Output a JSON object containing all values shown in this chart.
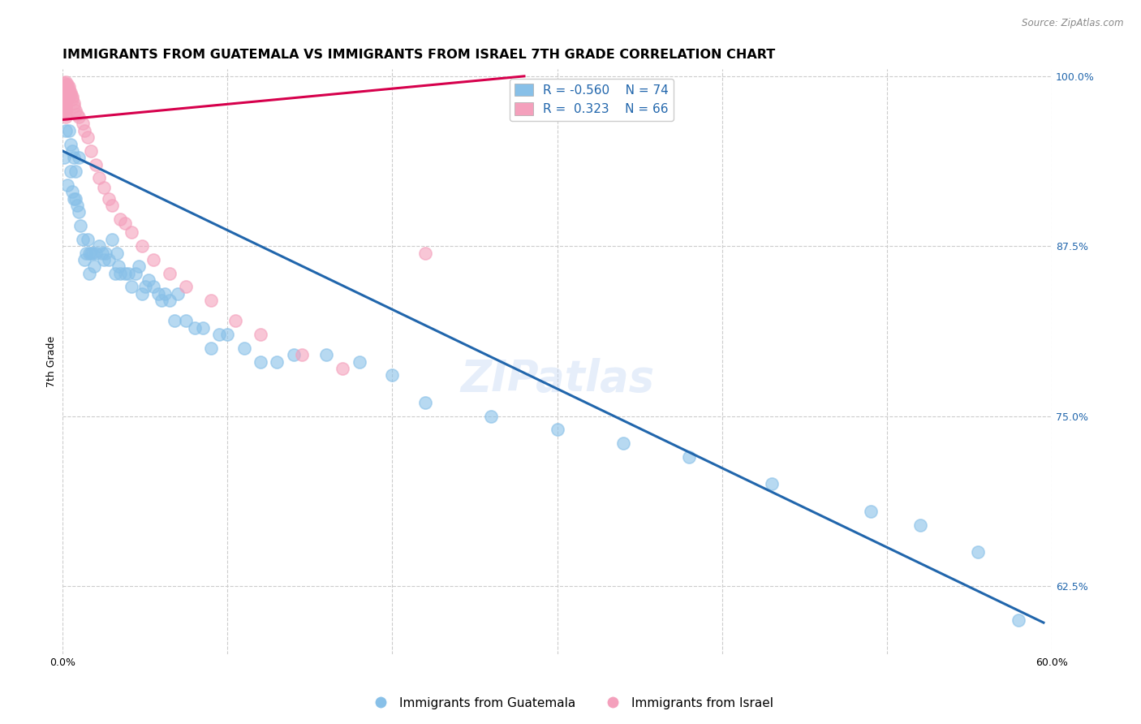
{
  "title": "IMMIGRANTS FROM GUATEMALA VS IMMIGRANTS FROM ISRAEL 7TH GRADE CORRELATION CHART",
  "source": "Source: ZipAtlas.com",
  "ylabel": "7th Grade",
  "xlim": [
    0.0,
    0.6
  ],
  "ylim": [
    0.575,
    1.005
  ],
  "xtick_positions": [
    0.0,
    0.1,
    0.2,
    0.3,
    0.4,
    0.5,
    0.6
  ],
  "xticklabels": [
    "0.0%",
    "",
    "",
    "",
    "",
    "",
    "60.0%"
  ],
  "yticks_right": [
    0.625,
    0.75,
    0.875,
    1.0
  ],
  "yticklabels_right": [
    "62.5%",
    "75.0%",
    "87.5%",
    "100.0%"
  ],
  "blue_R": "-0.560",
  "blue_N": "74",
  "pink_R": "0.323",
  "pink_N": "66",
  "blue_color": "#88c0e8",
  "pink_color": "#f4a0bc",
  "blue_line_color": "#2166ac",
  "pink_line_color": "#d6004c",
  "watermark": "ZIPatlas",
  "legend_label_blue": "Immigrants from Guatemala",
  "legend_label_pink": "Immigrants from Israel",
  "blue_scatter_x": [
    0.001,
    0.002,
    0.003,
    0.004,
    0.005,
    0.005,
    0.006,
    0.006,
    0.007,
    0.007,
    0.008,
    0.008,
    0.009,
    0.01,
    0.01,
    0.011,
    0.012,
    0.013,
    0.014,
    0.015,
    0.016,
    0.016,
    0.017,
    0.018,
    0.019,
    0.02,
    0.022,
    0.024,
    0.025,
    0.026,
    0.028,
    0.03,
    0.032,
    0.033,
    0.034,
    0.035,
    0.038,
    0.04,
    0.042,
    0.044,
    0.046,
    0.048,
    0.05,
    0.052,
    0.055,
    0.058,
    0.06,
    0.062,
    0.065,
    0.068,
    0.07,
    0.075,
    0.08,
    0.085,
    0.09,
    0.095,
    0.1,
    0.11,
    0.12,
    0.13,
    0.14,
    0.16,
    0.18,
    0.2,
    0.22,
    0.26,
    0.3,
    0.34,
    0.38,
    0.43,
    0.49,
    0.52,
    0.555,
    0.58
  ],
  "blue_scatter_y": [
    0.94,
    0.96,
    0.92,
    0.96,
    0.93,
    0.95,
    0.915,
    0.945,
    0.91,
    0.94,
    0.91,
    0.93,
    0.905,
    0.9,
    0.94,
    0.89,
    0.88,
    0.865,
    0.87,
    0.88,
    0.87,
    0.855,
    0.87,
    0.87,
    0.86,
    0.87,
    0.875,
    0.87,
    0.865,
    0.87,
    0.865,
    0.88,
    0.855,
    0.87,
    0.86,
    0.855,
    0.855,
    0.855,
    0.845,
    0.855,
    0.86,
    0.84,
    0.845,
    0.85,
    0.845,
    0.84,
    0.835,
    0.84,
    0.835,
    0.82,
    0.84,
    0.82,
    0.815,
    0.815,
    0.8,
    0.81,
    0.81,
    0.8,
    0.79,
    0.79,
    0.795,
    0.795,
    0.79,
    0.78,
    0.76,
    0.75,
    0.74,
    0.73,
    0.72,
    0.7,
    0.68,
    0.67,
    0.65,
    0.6
  ],
  "pink_scatter_x": [
    0.001,
    0.001,
    0.001,
    0.001,
    0.001,
    0.001,
    0.001,
    0.001,
    0.001,
    0.001,
    0.001,
    0.002,
    0.002,
    0.002,
    0.002,
    0.002,
    0.002,
    0.002,
    0.002,
    0.002,
    0.002,
    0.002,
    0.002,
    0.002,
    0.002,
    0.003,
    0.003,
    0.003,
    0.003,
    0.003,
    0.003,
    0.004,
    0.004,
    0.004,
    0.004,
    0.005,
    0.005,
    0.006,
    0.006,
    0.007,
    0.007,
    0.008,
    0.009,
    0.01,
    0.012,
    0.013,
    0.015,
    0.017,
    0.02,
    0.022,
    0.025,
    0.028,
    0.03,
    0.035,
    0.038,
    0.042,
    0.048,
    0.055,
    0.065,
    0.075,
    0.09,
    0.105,
    0.12,
    0.145,
    0.17,
    0.22
  ],
  "pink_scatter_y": [
    0.995,
    0.993,
    0.991,
    0.989,
    0.987,
    0.985,
    0.983,
    0.981,
    0.979,
    0.977,
    0.975,
    0.996,
    0.994,
    0.992,
    0.99,
    0.988,
    0.986,
    0.984,
    0.982,
    0.98,
    0.978,
    0.976,
    0.974,
    0.972,
    0.97,
    0.994,
    0.992,
    0.99,
    0.988,
    0.986,
    0.984,
    0.992,
    0.99,
    0.988,
    0.986,
    0.988,
    0.986,
    0.985,
    0.983,
    0.98,
    0.978,
    0.975,
    0.972,
    0.97,
    0.965,
    0.96,
    0.955,
    0.945,
    0.935,
    0.925,
    0.918,
    0.91,
    0.905,
    0.895,
    0.892,
    0.885,
    0.875,
    0.865,
    0.855,
    0.845,
    0.835,
    0.82,
    0.81,
    0.795,
    0.785,
    0.87
  ],
  "blue_trend_x": [
    0.0,
    0.595
  ],
  "blue_trend_y": [
    0.945,
    0.598
  ],
  "pink_trend_x": [
    0.0,
    0.28
  ],
  "pink_trend_y": [
    0.968,
    1.0
  ],
  "grid_color": "#cccccc",
  "bg_color": "#ffffff",
  "title_fontsize": 11.5,
  "axis_fontsize": 9,
  "tick_fontsize": 9,
  "legend_fontsize": 11,
  "watermark_fontsize": 38,
  "watermark_color": "#c8daf5",
  "watermark_alpha": 0.45
}
